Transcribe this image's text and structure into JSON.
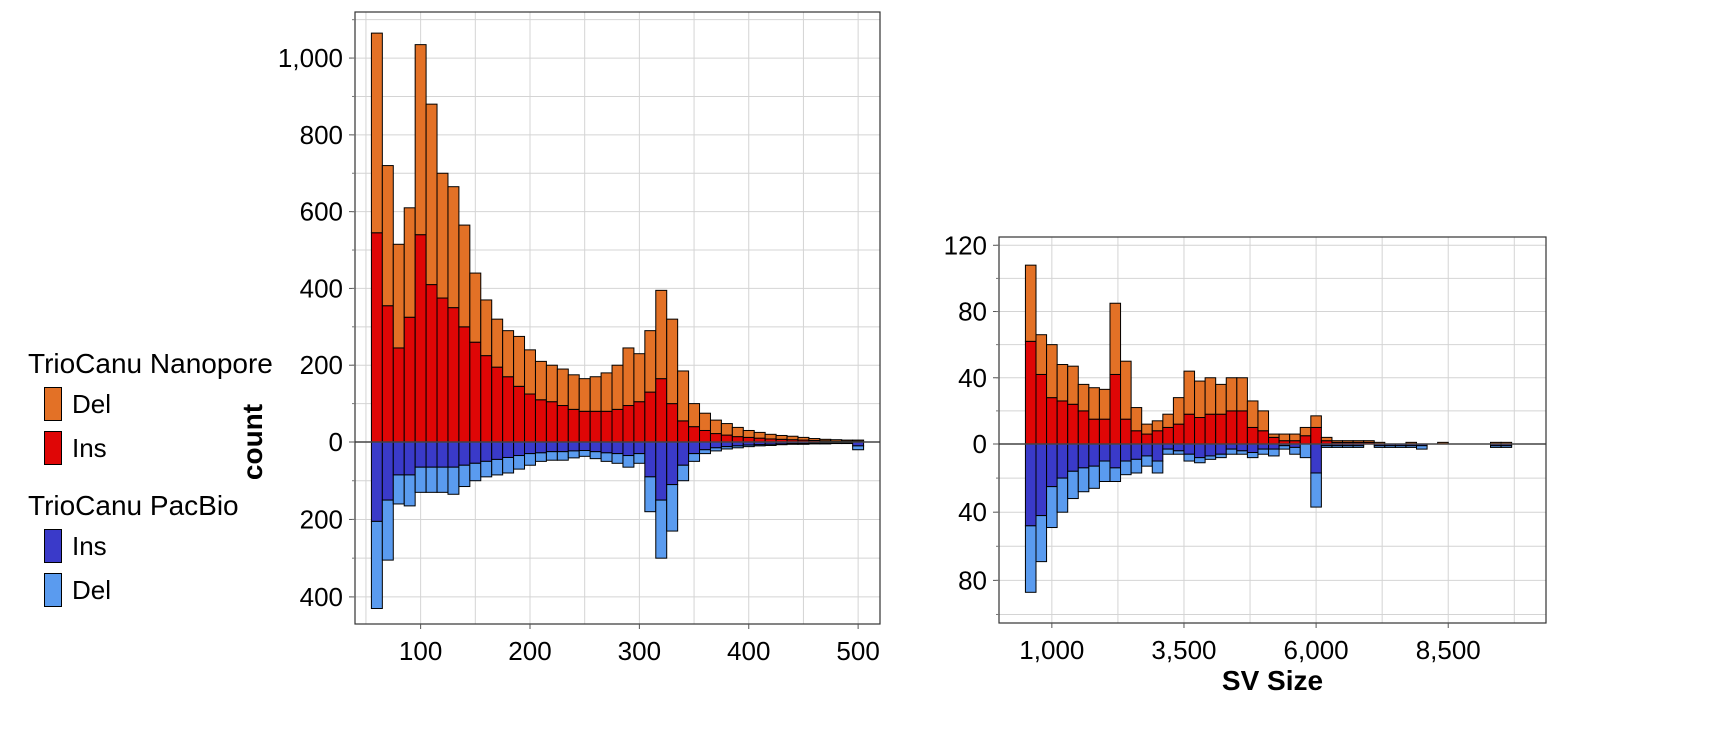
{
  "colors": {
    "nanopore_del": "#E37126",
    "nanopore_ins": "#DF0606",
    "pacbio_ins": "#3A3AC9",
    "pacbio_del": "#5A9BEF",
    "grid": "#D4D4D4",
    "baseline": "#444444"
  },
  "legend": {
    "groups": [
      {
        "title": "TrioCanu Nanopore",
        "items": [
          {
            "label": "Del",
            "color_key": "nanopore_del"
          },
          {
            "label": "Ins",
            "color_key": "nanopore_ins"
          }
        ]
      },
      {
        "title": "TrioCanu PacBio",
        "items": [
          {
            "label": "Ins",
            "color_key": "pacbio_ins"
          },
          {
            "label": "Del",
            "color_key": "pacbio_del"
          }
        ]
      }
    ]
  },
  "chart_data": [
    {
      "type": "bar",
      "layout": "mirrored stacked histogram",
      "ylabel": "count",
      "xlabel": "",
      "xlim": [
        40,
        520
      ],
      "ylim_top": [
        0,
        1120
      ],
      "ylim_bottom": [
        0,
        470
      ],
      "x_ticks": [
        100,
        200,
        300,
        400,
        500
      ],
      "x_tick_labels": [
        "100",
        "200",
        "300",
        "400",
        "500"
      ],
      "y_ticks_top": [
        0,
        200,
        400,
        600,
        800,
        1000
      ],
      "y_tick_labels_top": [
        "0",
        "200",
        "400",
        "600",
        "800",
        "1,000"
      ],
      "y_ticks_bottom": [
        200,
        400
      ],
      "y_tick_labels_bottom": [
        "200",
        "400"
      ],
      "grid": true,
      "bin_width": 10,
      "x": [
        60,
        70,
        80,
        90,
        100,
        110,
        120,
        130,
        140,
        150,
        160,
        170,
        180,
        190,
        200,
        210,
        220,
        230,
        240,
        250,
        260,
        270,
        280,
        290,
        300,
        310,
        320,
        330,
        340,
        350,
        360,
        370,
        380,
        390,
        400,
        410,
        420,
        430,
        440,
        450,
        460,
        470,
        480,
        490,
        500
      ],
      "series": [
        {
          "name": "Ins",
          "group": "TrioCanu Nanopore",
          "direction": "up",
          "values": [
            545,
            355,
            245,
            325,
            540,
            410,
            375,
            350,
            300,
            260,
            225,
            195,
            170,
            145,
            125,
            110,
            105,
            95,
            85,
            80,
            80,
            80,
            85,
            95,
            105,
            130,
            165,
            100,
            55,
            40,
            30,
            22,
            18,
            14,
            12,
            10,
            8,
            7,
            6,
            5,
            4,
            3,
            2,
            2,
            2
          ]
        },
        {
          "name": "Del",
          "group": "TrioCanu Nanopore",
          "direction": "up",
          "values": [
            520,
            365,
            270,
            285,
            495,
            470,
            325,
            315,
            265,
            180,
            145,
            125,
            120,
            130,
            115,
            100,
            95,
            95,
            90,
            85,
            90,
            100,
            115,
            150,
            125,
            160,
            230,
            220,
            130,
            60,
            45,
            35,
            30,
            24,
            18,
            15,
            12,
            10,
            9,
            7,
            5,
            4,
            4,
            3,
            3
          ]
        },
        {
          "name": "Ins",
          "group": "TrioCanu PacBio",
          "direction": "down",
          "values": [
            205,
            150,
            85,
            85,
            65,
            65,
            65,
            65,
            60,
            55,
            50,
            45,
            40,
            35,
            30,
            28,
            25,
            25,
            23,
            22,
            25,
            28,
            30,
            35,
            30,
            90,
            150,
            110,
            60,
            30,
            20,
            15,
            12,
            10,
            8,
            7,
            6,
            5,
            4,
            4,
            3,
            3,
            2,
            2,
            10
          ]
        },
        {
          "name": "Del",
          "group": "TrioCanu PacBio",
          "direction": "down",
          "values": [
            225,
            155,
            75,
            80,
            65,
            65,
            65,
            70,
            55,
            45,
            40,
            40,
            40,
            35,
            30,
            22,
            22,
            22,
            18,
            15,
            18,
            22,
            25,
            30,
            25,
            90,
            150,
            120,
            40,
            20,
            10,
            8,
            6,
            5,
            4,
            3,
            3,
            2,
            2,
            2,
            2,
            2,
            2,
            2,
            10
          ]
        }
      ]
    },
    {
      "type": "bar",
      "layout": "mirrored stacked histogram",
      "ylabel": "",
      "xlabel": "SV Size",
      "xlim": [
        0,
        10350
      ],
      "ylim_top": [
        0,
        125
      ],
      "ylim_bottom": [
        0,
        105
      ],
      "x_ticks": [
        1000,
        3500,
        6000,
        8500
      ],
      "x_tick_labels": [
        "1,000",
        "3,500",
        "6,000",
        "8,500"
      ],
      "y_ticks_top": [
        0,
        40,
        80,
        120
      ],
      "y_tick_labels_top": [
        "0",
        "40",
        "80",
        "120"
      ],
      "y_ticks_bottom": [
        40,
        80
      ],
      "y_tick_labels_bottom": [
        "40",
        "80"
      ],
      "grid": true,
      "bin_width": 200,
      "x": [
        600,
        800,
        1000,
        1200,
        1400,
        1600,
        1800,
        2000,
        2200,
        2400,
        2600,
        2800,
        3000,
        3200,
        3400,
        3600,
        3800,
        4000,
        4200,
        4400,
        4600,
        4800,
        5000,
        5200,
        5400,
        5600,
        5800,
        6000,
        6200,
        6400,
        6600,
        6800,
        7000,
        7200,
        7400,
        7600,
        7800,
        8000,
        8200,
        8400,
        8600,
        8800,
        9000,
        9200,
        9400,
        9600,
        9800
      ],
      "series": [
        {
          "name": "Ins",
          "group": "TrioCanu Nanopore",
          "direction": "up",
          "values": [
            62,
            42,
            28,
            26,
            24,
            20,
            15,
            15,
            42,
            15,
            8,
            6,
            8,
            10,
            12,
            18,
            16,
            18,
            18,
            20,
            20,
            10,
            8,
            4,
            2,
            2,
            5,
            10,
            2,
            1,
            1,
            1,
            1,
            0,
            0,
            0,
            0,
            0,
            0,
            0,
            0,
            0,
            0,
            0,
            0,
            0,
            0
          ]
        },
        {
          "name": "Del",
          "group": "TrioCanu Nanopore",
          "direction": "up",
          "values": [
            46,
            24,
            32,
            22,
            23,
            16,
            19,
            18,
            43,
            35,
            14,
            6,
            6,
            8,
            16,
            26,
            22,
            22,
            18,
            20,
            20,
            16,
            12,
            2,
            4,
            4,
            5,
            7,
            2,
            1,
            1,
            1,
            1,
            1,
            0,
            0,
            1,
            0,
            0,
            1,
            0,
            0,
            0,
            0,
            1,
            1,
            0
          ]
        },
        {
          "name": "Ins",
          "group": "TrioCanu PacBio",
          "direction": "down",
          "values": [
            48,
            42,
            25,
            20,
            16,
            14,
            13,
            10,
            14,
            10,
            9,
            7,
            10,
            3,
            4,
            6,
            8,
            7,
            6,
            3,
            4,
            5,
            3,
            3,
            1,
            2,
            0,
            17,
            1,
            1,
            1,
            1,
            0,
            1,
            1,
            1,
            1,
            1,
            0,
            0,
            0,
            0,
            0,
            0,
            1,
            1,
            0
          ]
        },
        {
          "name": "Del",
          "group": "TrioCanu PacBio",
          "direction": "down",
          "values": [
            39,
            27,
            24,
            20,
            16,
            14,
            13,
            12,
            8,
            8,
            8,
            6,
            7,
            3,
            2,
            4,
            3,
            2,
            2,
            3,
            2,
            3,
            3,
            4,
            2,
            4,
            8,
            20,
            1,
            1,
            1,
            1,
            0,
            1,
            1,
            1,
            1,
            2,
            0,
            0,
            0,
            0,
            0,
            0,
            1,
            1,
            0
          ]
        }
      ]
    }
  ]
}
